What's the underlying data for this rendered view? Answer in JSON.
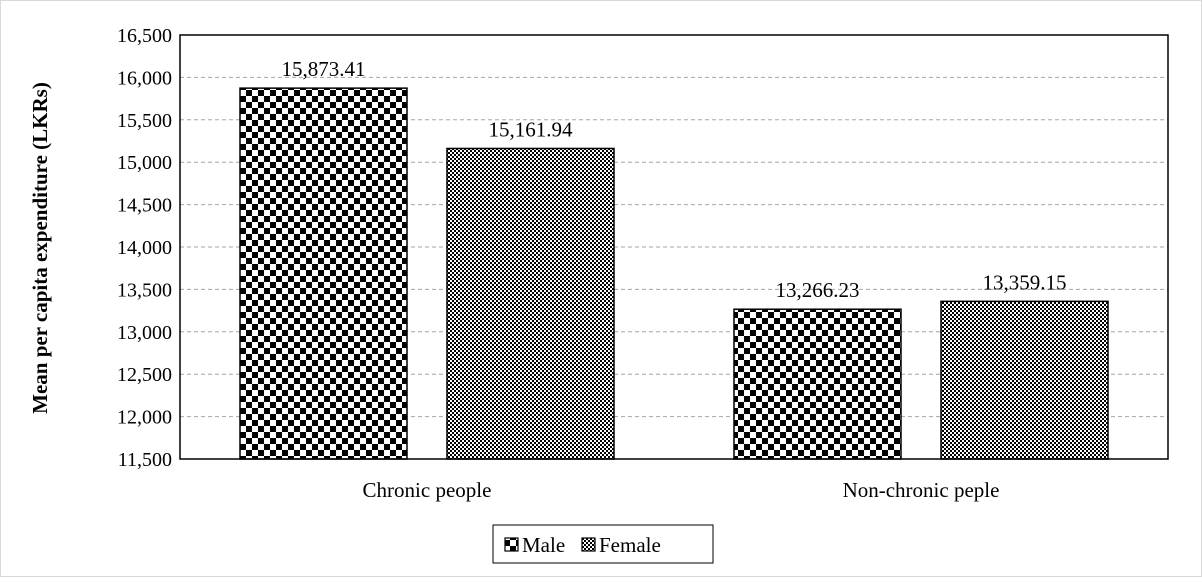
{
  "chart_data": {
    "type": "bar",
    "title": "",
    "xlabel": "",
    "ylabel": "Mean per capita expenditure (LKRs)",
    "categories": [
      "Chronic people",
      "Non-chronic peple"
    ],
    "series": [
      {
        "name": "Male",
        "values": [
          15873.41,
          13266.23
        ],
        "labels": [
          "15,873.41",
          "13,266.23"
        ],
        "pattern": "checker-coarse"
      },
      {
        "name": "Female",
        "values": [
          15161.94,
          13359.15
        ],
        "labels": [
          "15,161.94",
          "13,359.15"
        ],
        "pattern": "checker-fine"
      }
    ],
    "ylim": [
      11500,
      16500
    ],
    "yticks": [
      11500,
      12000,
      12500,
      13000,
      13500,
      14000,
      14500,
      15000,
      15500,
      16000,
      16500
    ],
    "ytick_labels": [
      "11,500",
      "12,000",
      "12,500",
      "13,000",
      "13,500",
      "14,000",
      "14,500",
      "15,000",
      "15,500",
      "16,000",
      "16,500"
    ],
    "grid": "horizontal-dashed",
    "legend_position": "bottom-center",
    "colors": {
      "bar_fill": "#000000",
      "bar_bg": "#ffffff",
      "grid": "#a6a6a6",
      "frame": "#d9d9d9"
    }
  }
}
